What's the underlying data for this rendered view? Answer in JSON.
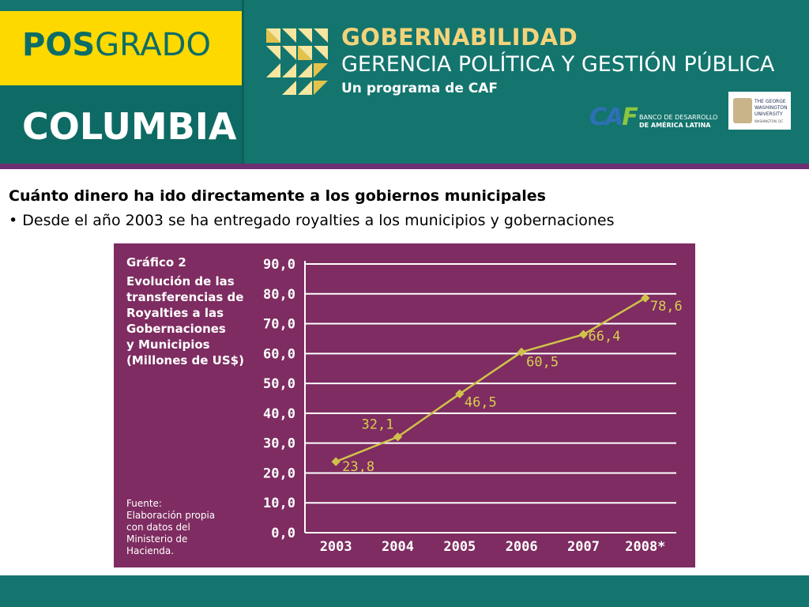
{
  "header": {
    "pos_bold": "POS",
    "pos_regular": "GRADO",
    "country": "COLUMBIA",
    "program_title": "GOBERNABILIDAD",
    "program_subtitle": "GERENCIA POLÍTICA Y GESTIÓN PÚBLICA",
    "program_tagline": "Un programa de CAF",
    "caf_mark": "CAF",
    "caf_line1": "BANCO DE DESARROLLO",
    "caf_line2": "DE AMÉRICA LATINA",
    "gwu_line1": "THE GEORGE",
    "gwu_line2": "WASHINGTON",
    "gwu_line3": "UNIVERSITY",
    "gwu_line4": "WASHINGTON, DC"
  },
  "content": {
    "heading": "Cuánto dinero ha ido directamente a los gobiernos municipales",
    "bullet": "• Desde el año 2003 se ha entregado royalties a los municipios y gobernaciones"
  },
  "colors": {
    "teal": "#13756e",
    "yellow": "#fdd900",
    "purple_rule": "#6b2f72",
    "chart_background": "#7e2c61",
    "line_color": "#cfc24a",
    "label_color": "#d8cf4e",
    "caf_blue": "#2f6fb6",
    "caf_green": "#8cc63f"
  },
  "chart_data": {
    "type": "line",
    "title": "Gráfico 2",
    "subtitle": "Evolución de las\ntransferencias de\nRoyalties a las\nGobernaciones\ny Municipios\n(Millones de US$)",
    "source": "Fuente:\nElaboración propia\ncon datos del\nMinisterio de\nHacienda.",
    "categories": [
      "2003",
      "2004",
      "2005",
      "2006",
      "2007",
      "2008*"
    ],
    "values": [
      23.8,
      32.1,
      46.5,
      60.5,
      66.4,
      78.6
    ],
    "value_labels": [
      "23,8",
      "32,1",
      "46,5",
      "60,5",
      "66,4",
      "78,6"
    ],
    "y_ticks": [
      "0,0",
      "10,0",
      "20,0",
      "30,0",
      "40,0",
      "50,0",
      "60,0",
      "70,0",
      "80,0",
      "90,0"
    ],
    "ylim": [
      0,
      90
    ],
    "grid": true,
    "legend": "none"
  }
}
